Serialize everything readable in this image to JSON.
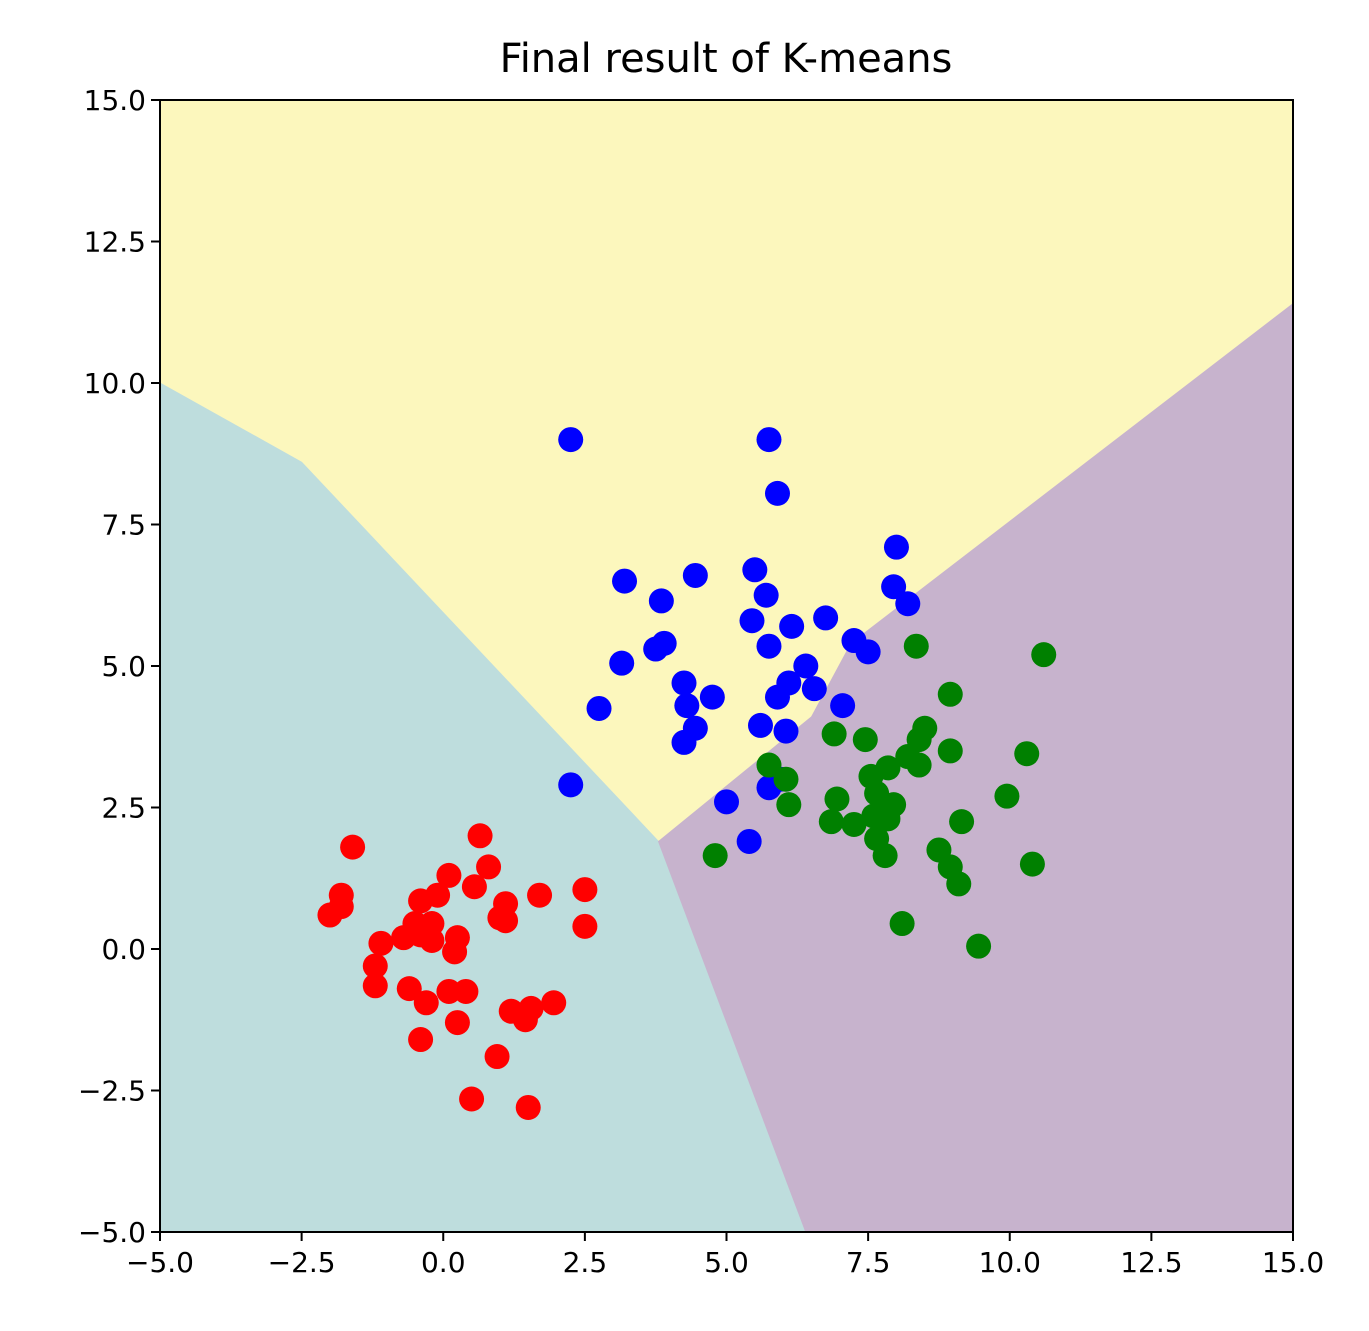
{
  "chart_data": {
    "type": "scatter",
    "title": "Final result of K-means",
    "xlabel": "",
    "ylabel": "",
    "xlim": [
      -5.0,
      15.0
    ],
    "ylim": [
      -5.0,
      15.0
    ],
    "xticks": [
      "−5.0",
      "−2.5",
      "0.0",
      "2.5",
      "5.0",
      "7.5",
      "10.0",
      "12.5",
      "15.0"
    ],
    "yticks": [
      "−5.0",
      "−2.5",
      "0.0",
      "2.5",
      "5.0",
      "7.5",
      "10.0",
      "12.5",
      "15.0"
    ],
    "xtick_values": [
      -5.0,
      -2.5,
      0.0,
      2.5,
      5.0,
      7.5,
      10.0,
      12.5,
      15.0
    ],
    "ytick_values": [
      -5.0,
      -2.5,
      0.0,
      2.5,
      5.0,
      7.5,
      10.0,
      12.5,
      15.0
    ],
    "grid": false,
    "regions": [
      {
        "color": "#fcf7bd",
        "polygon": [
          [
            -5.0,
            15.0
          ],
          [
            15.0,
            15.0
          ],
          [
            15.0,
            11.4
          ],
          [
            7.2,
            5.4
          ],
          [
            6.5,
            4.1
          ],
          [
            3.8,
            1.9
          ],
          [
            -2.5,
            8.6
          ],
          [
            -5.0,
            10.0
          ]
        ]
      },
      {
        "color": "#bedddd",
        "polygon": [
          [
            -5.0,
            10.0
          ],
          [
            -2.5,
            8.6
          ],
          [
            3.8,
            1.9
          ],
          [
            6.4,
            -5.0
          ],
          [
            -5.0,
            -5.0
          ]
        ]
      },
      {
        "color": "#c7b3cd",
        "polygon": [
          [
            3.8,
            1.9
          ],
          [
            6.5,
            4.1
          ],
          [
            7.2,
            5.4
          ],
          [
            15.0,
            11.4
          ],
          [
            15.0,
            -5.0
          ],
          [
            6.4,
            -5.0
          ]
        ]
      }
    ],
    "series": [
      {
        "color": "#ff0000",
        "points": [
          [
            -1.6,
            1.8
          ],
          [
            -1.8,
            0.95
          ],
          [
            -1.8,
            0.75
          ],
          [
            -2.0,
            0.6
          ],
          [
            -1.1,
            0.1
          ],
          [
            -1.2,
            -0.3
          ],
          [
            -1.2,
            -0.65
          ],
          [
            -0.7,
            0.2
          ],
          [
            -0.6,
            -0.7
          ],
          [
            -0.5,
            0.45
          ],
          [
            -0.4,
            0.85
          ],
          [
            -0.4,
            0.25
          ],
          [
            -0.3,
            -0.95
          ],
          [
            -0.4,
            -1.6
          ],
          [
            -0.2,
            0.45
          ],
          [
            -0.1,
            0.95
          ],
          [
            -0.2,
            0.15
          ],
          [
            0.1,
            1.3
          ],
          [
            0.1,
            -0.75
          ],
          [
            0.2,
            -0.05
          ],
          [
            0.25,
            0.2
          ],
          [
            0.25,
            -1.3
          ],
          [
            0.4,
            -0.75
          ],
          [
            0.55,
            1.1
          ],
          [
            0.65,
            2.0
          ],
          [
            0.8,
            1.45
          ],
          [
            0.5,
            -2.65
          ],
          [
            0.95,
            -1.9
          ],
          [
            1.0,
            0.55
          ],
          [
            1.1,
            0.8
          ],
          [
            1.1,
            0.5
          ],
          [
            1.2,
            -1.1
          ],
          [
            1.45,
            -1.25
          ],
          [
            1.55,
            -1.05
          ],
          [
            1.7,
            0.95
          ],
          [
            1.95,
            -0.95
          ],
          [
            1.5,
            -2.8
          ],
          [
            2.5,
            1.05
          ],
          [
            2.5,
            0.4
          ]
        ]
      },
      {
        "color": "#0000ff",
        "points": [
          [
            2.25,
            9.0
          ],
          [
            5.75,
            9.0
          ],
          [
            5.9,
            8.05
          ],
          [
            8.0,
            7.1
          ],
          [
            5.5,
            6.7
          ],
          [
            5.7,
            6.25
          ],
          [
            4.45,
            6.6
          ],
          [
            3.2,
            6.5
          ],
          [
            3.85,
            6.15
          ],
          [
            7.95,
            6.4
          ],
          [
            8.2,
            6.1
          ],
          [
            5.45,
            5.8
          ],
          [
            6.75,
            5.85
          ],
          [
            6.15,
            5.7
          ],
          [
            3.75,
            5.3
          ],
          [
            3.9,
            5.4
          ],
          [
            5.75,
            5.35
          ],
          [
            7.25,
            5.45
          ],
          [
            7.5,
            5.25
          ],
          [
            3.15,
            5.05
          ],
          [
            6.4,
            5.0
          ],
          [
            6.1,
            4.7
          ],
          [
            6.55,
            4.6
          ],
          [
            4.25,
            4.7
          ],
          [
            4.3,
            4.3
          ],
          [
            4.75,
            4.45
          ],
          [
            5.9,
            4.45
          ],
          [
            7.05,
            4.3
          ],
          [
            2.75,
            4.25
          ],
          [
            4.45,
            3.9
          ],
          [
            4.25,
            3.65
          ],
          [
            5.6,
            3.95
          ],
          [
            6.05,
            3.85
          ],
          [
            5.95,
            3.0
          ],
          [
            5.75,
            2.85
          ],
          [
            2.25,
            2.9
          ],
          [
            5.0,
            2.6
          ],
          [
            5.4,
            1.9
          ]
        ]
      },
      {
        "color": "#008000",
        "points": [
          [
            8.35,
            5.35
          ],
          [
            10.6,
            5.2
          ],
          [
            8.95,
            4.5
          ],
          [
            8.5,
            3.9
          ],
          [
            8.4,
            3.7
          ],
          [
            8.95,
            3.5
          ],
          [
            6.9,
            3.8
          ],
          [
            7.45,
            3.7
          ],
          [
            5.75,
            3.25
          ],
          [
            6.05,
            3.0
          ],
          [
            7.85,
            3.2
          ],
          [
            7.55,
            3.05
          ],
          [
            8.4,
            3.25
          ],
          [
            8.2,
            3.4
          ],
          [
            10.3,
            3.45
          ],
          [
            7.65,
            2.75
          ],
          [
            6.95,
            2.65
          ],
          [
            7.75,
            2.45
          ],
          [
            7.95,
            2.55
          ],
          [
            6.1,
            2.55
          ],
          [
            7.6,
            2.35
          ],
          [
            7.85,
            2.3
          ],
          [
            6.85,
            2.25
          ],
          [
            7.25,
            2.2
          ],
          [
            9.15,
            2.25
          ],
          [
            9.95,
            2.7
          ],
          [
            7.65,
            1.95
          ],
          [
            7.8,
            1.65
          ],
          [
            8.75,
            1.75
          ],
          [
            8.95,
            1.45
          ],
          [
            9.1,
            1.15
          ],
          [
            10.4,
            1.5
          ],
          [
            4.8,
            1.65
          ],
          [
            8.1,
            0.45
          ],
          [
            9.45,
            0.05
          ]
        ]
      }
    ]
  }
}
